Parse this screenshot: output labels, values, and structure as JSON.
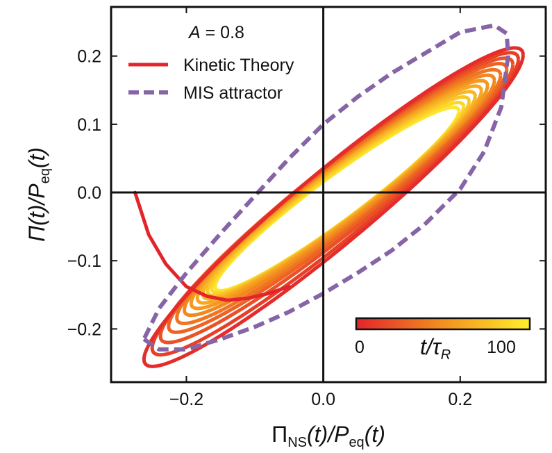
{
  "chart_data": {
    "type": "line",
    "xlim": [
      -0.31,
      0.325
    ],
    "ylim": [
      -0.278,
      0.272
    ],
    "x_ticks": [
      "−0.2",
      "0.0",
      "0.2"
    ],
    "x_tick_values": [
      -0.2,
      0.0,
      0.2
    ],
    "y_ticks": [
      "0.2",
      "0.1",
      "0.0",
      "−0.1",
      "−0.2"
    ],
    "y_tick_values": [
      0.2,
      0.1,
      0.0,
      -0.1,
      -0.2
    ],
    "xlabel": {
      "main": "Π",
      "sub1": "NS",
      "mid": "(t)/P",
      "sub2": "eq",
      "tail": "(t)"
    },
    "ylabel": {
      "main": "Π(t)/P",
      "sub": "eq",
      "tail": "(t)"
    },
    "legend": {
      "title_var": "A",
      "title_value": " = 0.8",
      "kinetic_label": "Kinetic Theory",
      "mis_label": "MIS attractor",
      "placement": "top-left"
    },
    "colorbar": {
      "label": "t/τ",
      "label_sub": "R",
      "tick_min": "0",
      "tick_max": "100",
      "range": [
        0,
        120
      ],
      "placement": "bottom-right"
    },
    "colors": {
      "kinetic_start": "#e3242b",
      "kinetic_end": "#ffee2e",
      "mis": "#8664a6",
      "axes": "#111111"
    },
    "series": [
      {
        "name": "Kinetic Theory",
        "style": "solid",
        "initial_segment": {
          "x": [
            -0.275,
            -0.255,
            -0.23,
            -0.2,
            -0.17,
            -0.14,
            -0.11,
            -0.08,
            -0.05
          ],
          "y": [
            0.0,
            -0.062,
            -0.105,
            -0.138,
            -0.152,
            -0.158,
            -0.155,
            -0.148,
            -0.138
          ]
        },
        "loops": [
          {
            "t": 5,
            "x_min": -0.262,
            "y_min": -0.255,
            "x_max": 0.292,
            "y_max": 0.212
          },
          {
            "t": 15,
            "x_min": -0.25,
            "y_min": -0.238,
            "x_max": 0.285,
            "y_max": 0.205
          },
          {
            "t": 25,
            "x_min": -0.238,
            "y_min": -0.22,
            "x_max": 0.277,
            "y_max": 0.197
          },
          {
            "t": 35,
            "x_min": -0.226,
            "y_min": -0.205,
            "x_max": 0.268,
            "y_max": 0.189
          },
          {
            "t": 45,
            "x_min": -0.214,
            "y_min": -0.192,
            "x_max": 0.259,
            "y_max": 0.18
          },
          {
            "t": 55,
            "x_min": -0.203,
            "y_min": -0.18,
            "x_max": 0.25,
            "y_max": 0.172
          },
          {
            "t": 65,
            "x_min": -0.193,
            "y_min": -0.17,
            "x_max": 0.24,
            "y_max": 0.164
          },
          {
            "t": 75,
            "x_min": -0.184,
            "y_min": -0.162,
            "x_max": 0.231,
            "y_max": 0.156
          },
          {
            "t": 85,
            "x_min": -0.176,
            "y_min": -0.156,
            "x_max": 0.222,
            "y_max": 0.148
          },
          {
            "t": 95,
            "x_min": -0.169,
            "y_min": -0.151,
            "x_max": 0.213,
            "y_max": 0.14
          },
          {
            "t": 105,
            "x_min": -0.163,
            "y_min": -0.147,
            "x_max": 0.205,
            "y_max": 0.132
          },
          {
            "t": 115,
            "x_min": -0.158,
            "y_min": -0.144,
            "x_max": 0.198,
            "y_max": 0.125
          }
        ]
      },
      {
        "name": "MIS attractor",
        "style": "dashed",
        "x": [
          -0.262,
          -0.24,
          -0.2,
          -0.15,
          -0.1,
          -0.05,
          0.0,
          0.05,
          0.1,
          0.15,
          0.2,
          0.235,
          0.26,
          0.27,
          0.268,
          0.25,
          0.2,
          0.15,
          0.1,
          0.05,
          0.0,
          -0.05,
          -0.1,
          -0.15,
          -0.2,
          -0.24,
          -0.262
        ],
        "y": [
          -0.215,
          -0.23,
          -0.23,
          -0.215,
          -0.197,
          -0.175,
          -0.148,
          -0.118,
          -0.085,
          -0.045,
          0.005,
          0.06,
          0.125,
          0.2,
          0.233,
          0.245,
          0.235,
          0.205,
          0.175,
          0.14,
          0.1,
          0.05,
          -0.005,
          -0.06,
          -0.118,
          -0.17,
          -0.215
        ]
      }
    ]
  }
}
